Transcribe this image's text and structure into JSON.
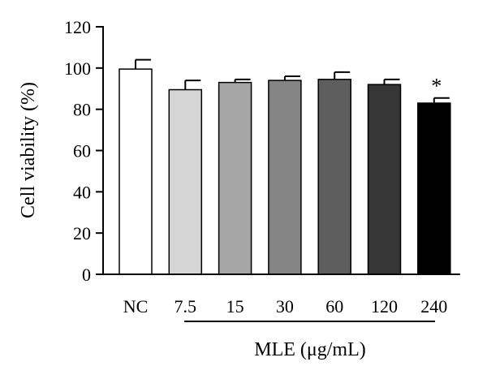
{
  "chart_data": {
    "type": "bar",
    "ylabel": "Cell viability (%)",
    "xlabel": "",
    "group_label": "MLE (μg/mL)",
    "ylim": [
      0,
      120
    ],
    "yticks": [
      0,
      20,
      40,
      60,
      80,
      100,
      120
    ],
    "grid": false,
    "categories": [
      "NC",
      "7.5",
      "15",
      "30",
      "60",
      "120",
      "240"
    ],
    "values": [
      99.5,
      89.5,
      93,
      94,
      94.5,
      92,
      83
    ],
    "errors": [
      4.5,
      4.5,
      1.5,
      2,
      3.5,
      2.5,
      2.5
    ],
    "annotations": [
      {
        "category": "240",
        "text": "*"
      }
    ],
    "colors": {
      "fills": [
        "#ffffff",
        "#d6d6d6",
        "#a6a6a6",
        "#848484",
        "#5e5e5e",
        "#363636",
        "#000000"
      ],
      "axis": "#000000",
      "bar_stroke": "#000000"
    }
  }
}
